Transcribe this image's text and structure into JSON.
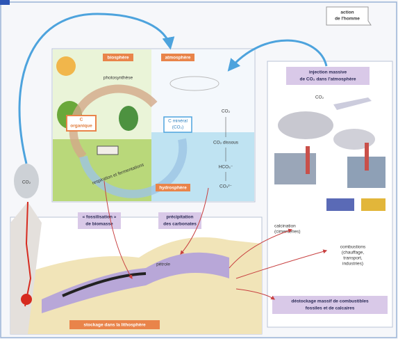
{
  "action": [
    "action",
    "de l'homme"
  ],
  "biosphere": "biosphère",
  "atmosphere": "atmosphère",
  "hydrosphere": "hydrosphère",
  "photosynthese": "photosynthèse",
  "respiration": "respiration et fermentations",
  "c_organique": [
    "C",
    "organique"
  ],
  "c_mineral": [
    "C minéral",
    "(CO₂)"
  ],
  "ocean": {
    "co2": "CO₂",
    "dissous": "CO₂ dissous",
    "hco3": "HCO₃⁻",
    "co3": "CO₃²⁻"
  },
  "volcan_co2": "CO₂",
  "fossilisation": [
    "« fossilisation »",
    "de biomasse"
  ],
  "precipitation": [
    "précipitation",
    "des carbonates"
  ],
  "injection": [
    "injection massive",
    "de CO₂ dans l'atmosphère"
  ],
  "avion_co2": "CO₂",
  "petrole": "pétrole",
  "calcination": [
    "calcination",
    "(cimenteries)"
  ],
  "combustions": [
    "combustions",
    "(chauffage,",
    "transport,",
    "industries)"
  ],
  "destockage": [
    "déstockage massif de combustibles",
    "fossiles et de calcaires"
  ],
  "stockage": "stockage dans la lithosphère"
}
